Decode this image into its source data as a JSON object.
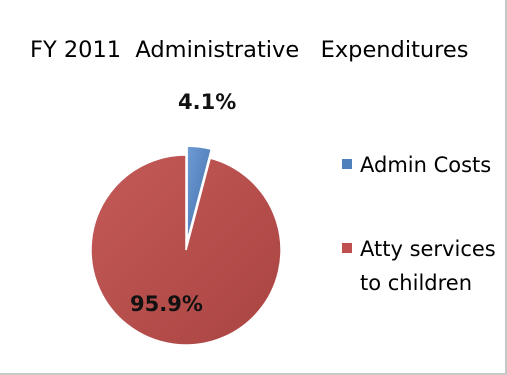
{
  "chart_data": {
    "type": "pie",
    "title": "FY 2011  Administrative   Expenditures",
    "series": [
      {
        "name": "Admin Costs",
        "legend_lines": [
          "Admin Costs"
        ],
        "value": 4.1,
        "label": "4.1%",
        "color": "#4f81bd"
      },
      {
        "name": "Atty services to children",
        "legend_lines": [
          "Atty services",
          "to children"
        ],
        "value": 95.9,
        "label": "95.9%",
        "color": "#c0504d"
      }
    ],
    "legend_position": "right",
    "exploded_slice": "Admin Costs"
  }
}
